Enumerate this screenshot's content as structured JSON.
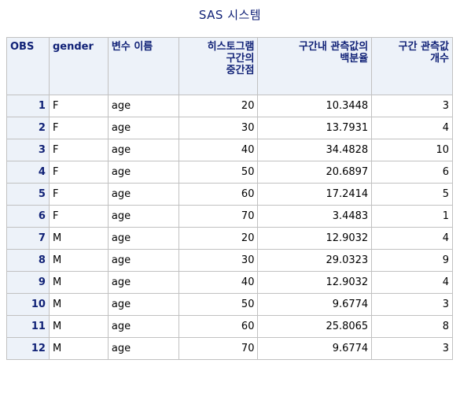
{
  "title": "SAS 시스템",
  "headers": {
    "obs": "OBS",
    "gender": "gender",
    "variable_name": "변수 이름",
    "histogram_midpoint": "히스토그램\n구간의\n중간점",
    "percent_in_bin": "구간내 관측값의\n백분율",
    "count_in_bin": "구간 관측값\n개수"
  },
  "rows": [
    {
      "obs": "1",
      "gender": "F",
      "variable": "age",
      "midpoint": "20",
      "percent": "10.3448",
      "count": "3"
    },
    {
      "obs": "2",
      "gender": "F",
      "variable": "age",
      "midpoint": "30",
      "percent": "13.7931",
      "count": "4"
    },
    {
      "obs": "3",
      "gender": "F",
      "variable": "age",
      "midpoint": "40",
      "percent": "34.4828",
      "count": "10"
    },
    {
      "obs": "4",
      "gender": "F",
      "variable": "age",
      "midpoint": "50",
      "percent": "20.6897",
      "count": "6"
    },
    {
      "obs": "5",
      "gender": "F",
      "variable": "age",
      "midpoint": "60",
      "percent": "17.2414",
      "count": "5"
    },
    {
      "obs": "6",
      "gender": "F",
      "variable": "age",
      "midpoint": "70",
      "percent": "3.4483",
      "count": "1"
    },
    {
      "obs": "7",
      "gender": "M",
      "variable": "age",
      "midpoint": "20",
      "percent": "12.9032",
      "count": "4"
    },
    {
      "obs": "8",
      "gender": "M",
      "variable": "age",
      "midpoint": "30",
      "percent": "29.0323",
      "count": "9"
    },
    {
      "obs": "9",
      "gender": "M",
      "variable": "age",
      "midpoint": "40",
      "percent": "12.9032",
      "count": "4"
    },
    {
      "obs": "10",
      "gender": "M",
      "variable": "age",
      "midpoint": "50",
      "percent": "9.6774",
      "count": "3"
    },
    {
      "obs": "11",
      "gender": "M",
      "variable": "age",
      "midpoint": "60",
      "percent": "25.8065",
      "count": "8"
    },
    {
      "obs": "12",
      "gender": "M",
      "variable": "age",
      "midpoint": "70",
      "percent": "9.6774",
      "count": "3"
    }
  ],
  "colors": {
    "title_text": "#112277",
    "header_background": "#edf2f9",
    "header_text": "#112277",
    "grid_line": "#c1c1c1"
  }
}
